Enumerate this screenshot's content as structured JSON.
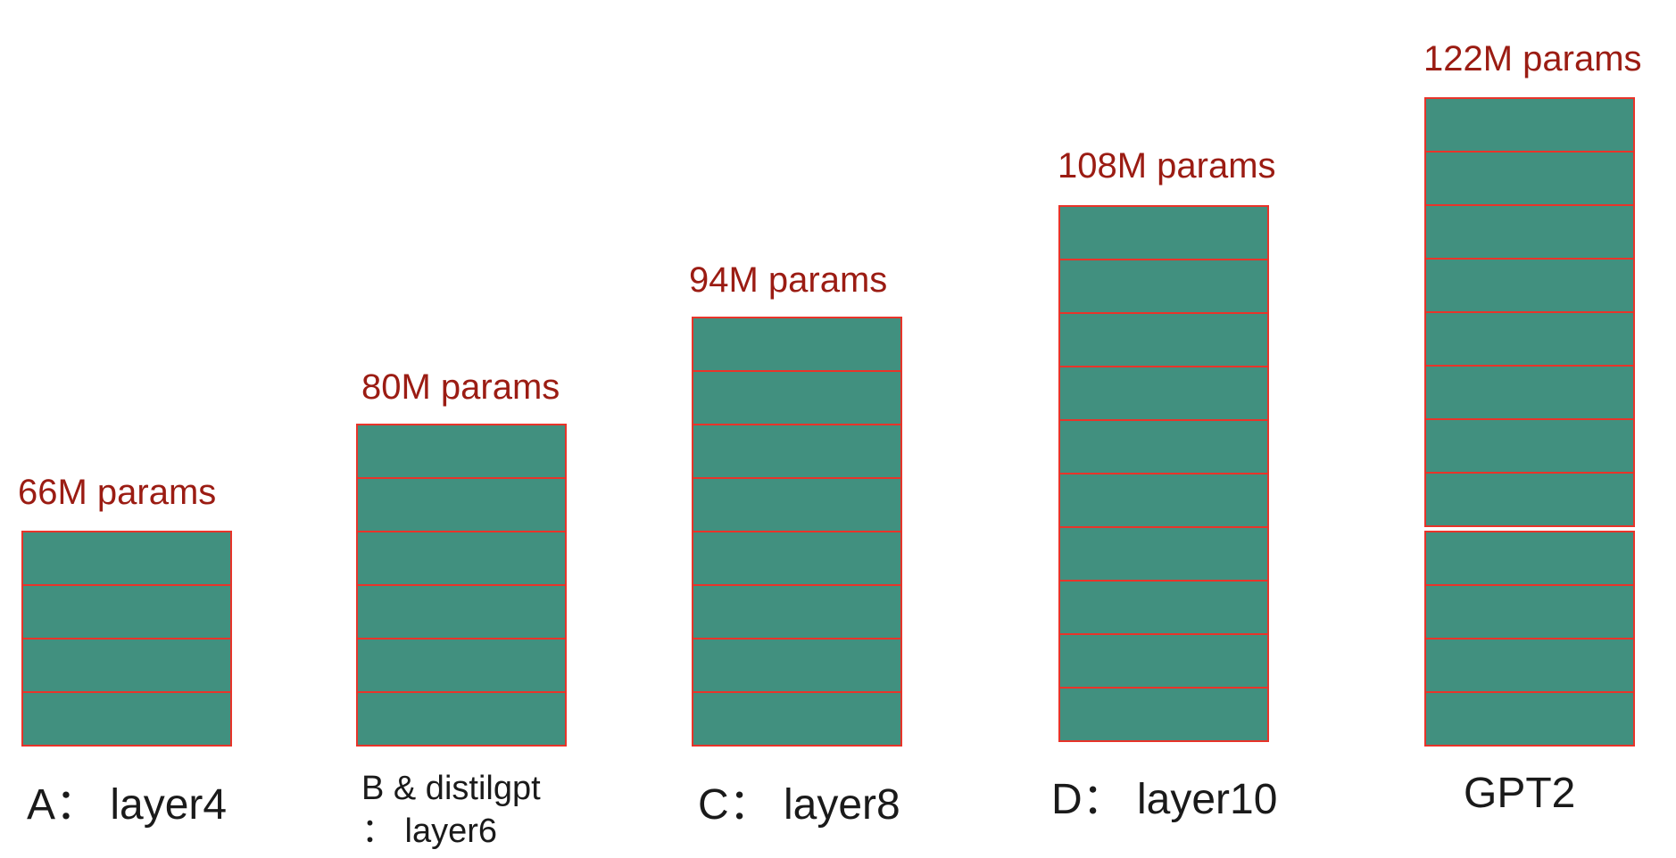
{
  "diagram": {
    "block_fill": "#41907f",
    "block_border": "#e8342a",
    "param_color": "#9b1c13",
    "label_color": "#1a1a1a",
    "models": [
      {
        "id": "A",
        "param_label": "66M params",
        "name_label": "A： layer4",
        "layers": 4,
        "groups": [
          4
        ]
      },
      {
        "id": "B",
        "param_label": "80M params",
        "name_label_line1": "B & distilgpt",
        "name_label_line2": "： layer6",
        "layers": 6,
        "groups": [
          6
        ]
      },
      {
        "id": "C",
        "param_label": "94M params",
        "name_label": "C： layer8",
        "layers": 8,
        "groups": [
          8
        ]
      },
      {
        "id": "D",
        "param_label": "108M params",
        "name_label": "D： layer10",
        "layers": 10,
        "groups": [
          10
        ]
      },
      {
        "id": "GPT2",
        "param_label": "122M params",
        "name_label": "GPT2",
        "layers": 12,
        "groups": [
          4,
          8
        ]
      }
    ]
  }
}
